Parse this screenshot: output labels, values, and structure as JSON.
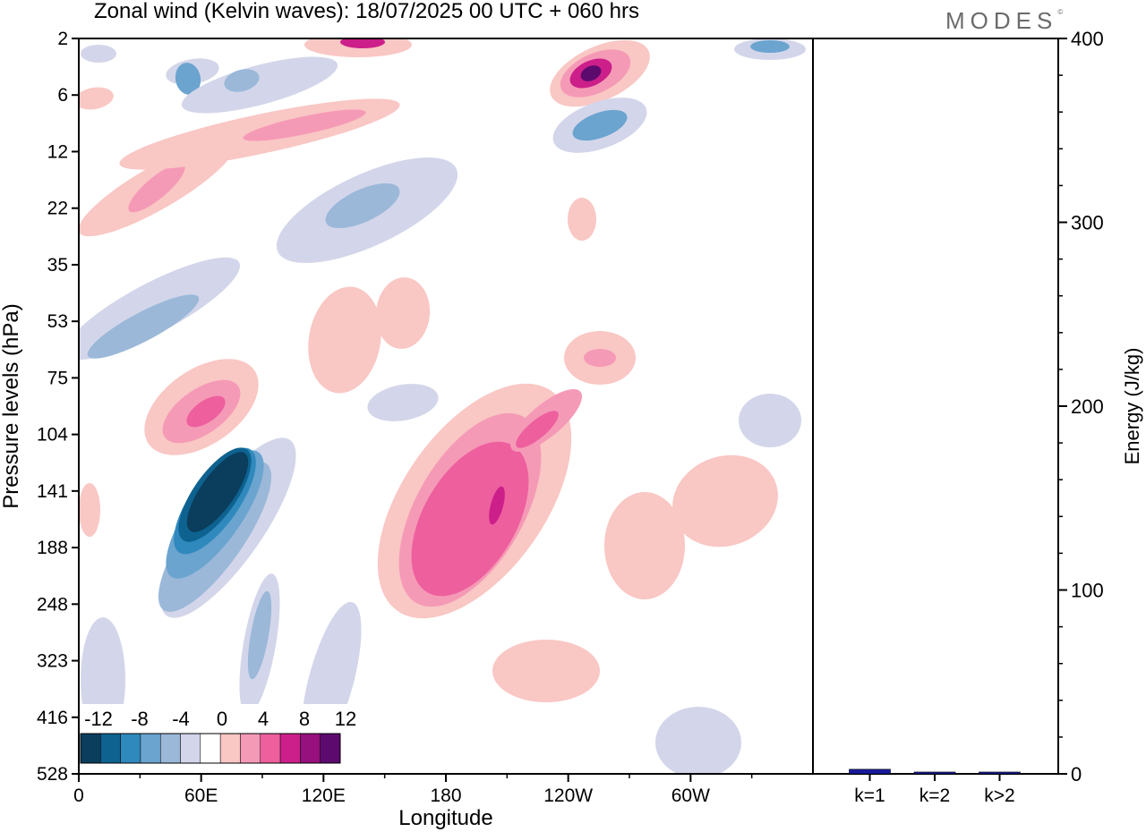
{
  "header": {
    "title": "Zonal wind (Kelvin waves):  18/07/2025  00 UTC  + 060 hrs",
    "brand": "MODES",
    "brand_mark": "©"
  },
  "chart_data": [
    {
      "type": "heatmap",
      "title": "Zonal wind (Kelvin waves):  18/07/2025  00 UTC  + 060 hrs",
      "xlabel": "Longitude",
      "ylabel": "Pressure levels (hPa)",
      "x_ticks": [
        "0",
        "60E",
        "120E",
        "180",
        "120W",
        "60W"
      ],
      "x_tick_values": [
        0,
        60,
        120,
        180,
        240,
        300
      ],
      "xlim": [
        0,
        360
      ],
      "y_ticks": [
        "2",
        "6",
        "12",
        "22",
        "35",
        "53",
        "75",
        "104",
        "141",
        "188",
        "248",
        "323",
        "416",
        "528"
      ],
      "y_scale": "categorical levels (top = 2 hPa, bottom = 528 hPa)",
      "colorbar": {
        "labels": [
          "-12",
          "-8",
          "-4",
          "0",
          "4",
          "8",
          "12"
        ],
        "levels": [
          -14,
          -12,
          -10,
          -8,
          -6,
          -4,
          -2,
          2,
          4,
          6,
          8,
          10,
          12,
          14
        ],
        "colors": [
          "#0b3d5c",
          "#0d6290",
          "#2f89bd",
          "#6aa4cf",
          "#9bb8d9",
          "#d3d6ea",
          "#ffffff",
          "#f9c7c4",
          "#f59ab6",
          "#ee5f9e",
          "#cc1f8a",
          "#96107e",
          "#5c0a6e"
        ]
      },
      "colors": {
        "neg4": "#d3d6ea",
        "neg6": "#9bb8d9",
        "neg8": "#6aa4cf",
        "neg10": "#2f89bd",
        "neg12": "#0d6290",
        "neg14": "#0b3d5c",
        "pos2": "#f9c7c4",
        "pos4": "#f59ab6",
        "pos6": "#ee5f9e",
        "pos8": "#cc1f8a",
        "pos10": "#96107e",
        "pos12": "#5c0a6e"
      }
    },
    {
      "type": "bar",
      "categories": [
        "k=1",
        "k=2",
        "k>2"
      ],
      "values": [
        2,
        0.5,
        0.5
      ],
      "ylabel": "Energy (J/kg)",
      "y_ticks": [
        "0",
        "100",
        "200",
        "300",
        "400"
      ],
      "ylim": [
        0,
        400
      ],
      "bar_color": "#1a1aa0"
    }
  ]
}
